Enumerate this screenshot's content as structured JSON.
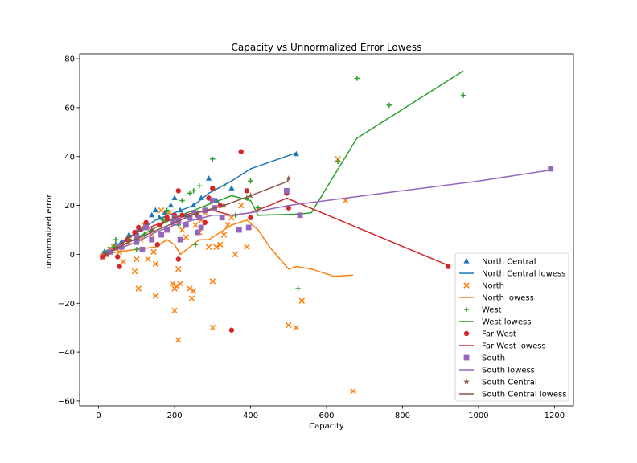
{
  "chart_data": {
    "type": "scatter",
    "title": "Capacity vs Unnormalized Error Lowess",
    "xlabel": "Capacity",
    "ylabel": "unnormaized error",
    "xlim": [
      -50,
      1250
    ],
    "ylim": [
      -62,
      82
    ],
    "xticks": [
      0,
      200,
      400,
      600,
      800,
      1000,
      1200
    ],
    "yticks": [
      -60,
      -40,
      -20,
      0,
      20,
      40,
      60,
      80
    ],
    "grid": false,
    "legend_position": "lower-right",
    "series": [
      {
        "name": "North Central",
        "kind": "scatter",
        "marker": "triangle",
        "color": "#1f77b4",
        "points": [
          [
            15,
            1
          ],
          [
            30,
            2
          ],
          [
            45,
            4
          ],
          [
            60,
            5
          ],
          [
            80,
            8
          ],
          [
            100,
            9
          ],
          [
            110,
            10
          ],
          [
            125,
            13
          ],
          [
            140,
            16
          ],
          [
            150,
            18
          ],
          [
            160,
            15
          ],
          [
            175,
            17
          ],
          [
            190,
            20
          ],
          [
            200,
            23
          ],
          [
            215,
            18
          ],
          [
            230,
            16
          ],
          [
            250,
            20
          ],
          [
            270,
            23
          ],
          [
            290,
            31
          ],
          [
            310,
            22
          ],
          [
            350,
            27
          ],
          [
            520,
            41
          ]
        ]
      },
      {
        "name": "North Central lowess",
        "kind": "line",
        "color": "#1f77b4",
        "points": [
          [
            15,
            1
          ],
          [
            50,
            4
          ],
          [
            100,
            9
          ],
          [
            150,
            14
          ],
          [
            200,
            17
          ],
          [
            250,
            20
          ],
          [
            290,
            25
          ],
          [
            350,
            30
          ],
          [
            400,
            35
          ],
          [
            520,
            41.5
          ]
        ]
      },
      {
        "name": "North",
        "kind": "scatter",
        "marker": "x",
        "color": "#ff7f0e",
        "points": [
          [
            10,
            -1
          ],
          [
            20,
            0
          ],
          [
            30,
            2
          ],
          [
            40,
            3
          ],
          [
            55,
            1
          ],
          [
            65,
            -3
          ],
          [
            80,
            5
          ],
          [
            95,
            -7
          ],
          [
            100,
            -2
          ],
          [
            105,
            -14
          ],
          [
            110,
            6
          ],
          [
            120,
            12
          ],
          [
            130,
            -2
          ],
          [
            140,
            8
          ],
          [
            145,
            1
          ],
          [
            150,
            -4
          ],
          [
            150,
            -17
          ],
          [
            160,
            12
          ],
          [
            165,
            18
          ],
          [
            180,
            10
          ],
          [
            185,
            17
          ],
          [
            195,
            -12
          ],
          [
            200,
            -14
          ],
          [
            200,
            -23
          ],
          [
            205,
            -13
          ],
          [
            210,
            -6
          ],
          [
            210,
            -35
          ],
          [
            215,
            -12
          ],
          [
            220,
            10
          ],
          [
            230,
            7
          ],
          [
            240,
            -14
          ],
          [
            245,
            -18
          ],
          [
            250,
            -15
          ],
          [
            255,
            12
          ],
          [
            265,
            9
          ],
          [
            270,
            14
          ],
          [
            280,
            17
          ],
          [
            290,
            3
          ],
          [
            300,
            -11
          ],
          [
            300,
            -30
          ],
          [
            310,
            3
          ],
          [
            320,
            4
          ],
          [
            330,
            8
          ],
          [
            340,
            12
          ],
          [
            350,
            15
          ],
          [
            360,
            0
          ],
          [
            375,
            20
          ],
          [
            390,
            3
          ],
          [
            500,
            -29
          ],
          [
            520,
            -30
          ],
          [
            535,
            -19
          ],
          [
            630,
            39
          ],
          [
            650,
            22
          ],
          [
            670,
            -56
          ]
        ]
      },
      {
        "name": "North lowess",
        "kind": "line",
        "color": "#ff7f0e",
        "points": [
          [
            10,
            0
          ],
          [
            50,
            1
          ],
          [
            100,
            2
          ],
          [
            150,
            3
          ],
          [
            180,
            6
          ],
          [
            200,
            4
          ],
          [
            215,
            0
          ],
          [
            240,
            3
          ],
          [
            265,
            6
          ],
          [
            290,
            6
          ],
          [
            320,
            9
          ],
          [
            350,
            12
          ],
          [
            390,
            14
          ],
          [
            420,
            10
          ],
          [
            450,
            3
          ],
          [
            500,
            -6
          ],
          [
            520,
            -5
          ],
          [
            560,
            -6
          ],
          [
            620,
            -9
          ],
          [
            670,
            -8.5
          ]
        ]
      },
      {
        "name": "West",
        "kind": "scatter",
        "marker": "plus",
        "color": "#2ca02c",
        "points": [
          [
            15,
            1
          ],
          [
            40,
            3
          ],
          [
            45,
            6
          ],
          [
            80,
            7
          ],
          [
            100,
            2
          ],
          [
            120,
            8
          ],
          [
            140,
            10
          ],
          [
            170,
            14
          ],
          [
            180,
            18
          ],
          [
            200,
            16
          ],
          [
            210,
            12
          ],
          [
            220,
            22
          ],
          [
            240,
            25
          ],
          [
            250,
            26
          ],
          [
            255,
            4
          ],
          [
            265,
            28
          ],
          [
            290,
            23
          ],
          [
            300,
            39
          ],
          [
            330,
            28
          ],
          [
            360,
            16
          ],
          [
            390,
            23
          ],
          [
            400,
            30
          ],
          [
            420,
            19
          ],
          [
            525,
            -14
          ],
          [
            630,
            38
          ],
          [
            680,
            72
          ],
          [
            765,
            61
          ],
          [
            960,
            65
          ]
        ]
      },
      {
        "name": "West lowess",
        "kind": "line",
        "color": "#2ca02c",
        "points": [
          [
            15,
            0.5
          ],
          [
            80,
            5
          ],
          [
            150,
            11
          ],
          [
            200,
            15
          ],
          [
            250,
            18
          ],
          [
            300,
            21
          ],
          [
            350,
            24
          ],
          [
            400,
            22
          ],
          [
            420,
            16
          ],
          [
            530,
            16.5
          ],
          [
            560,
            17
          ],
          [
            680,
            47.5
          ],
          [
            960,
            75
          ]
        ]
      },
      {
        "name": "Far West",
        "kind": "scatter",
        "marker": "circle",
        "color": "#d62728",
        "points": [
          [
            10,
            -1
          ],
          [
            20,
            0
          ],
          [
            50,
            -1
          ],
          [
            55,
            -5
          ],
          [
            75,
            6
          ],
          [
            95,
            9
          ],
          [
            105,
            11
          ],
          [
            125,
            13
          ],
          [
            155,
            4
          ],
          [
            160,
            12
          ],
          [
            180,
            15
          ],
          [
            200,
            16
          ],
          [
            210,
            -2
          ],
          [
            210,
            26
          ],
          [
            220,
            16
          ],
          [
            240,
            15
          ],
          [
            260,
            16
          ],
          [
            280,
            13
          ],
          [
            290,
            23
          ],
          [
            300,
            27
          ],
          [
            320,
            20
          ],
          [
            350,
            -31
          ],
          [
            375,
            42
          ],
          [
            390,
            26
          ],
          [
            400,
            15
          ],
          [
            495,
            25
          ],
          [
            500,
            19
          ],
          [
            920,
            -5
          ]
        ]
      },
      {
        "name": "Far West lowess",
        "kind": "line",
        "color": "#d62728",
        "points": [
          [
            10,
            -1
          ],
          [
            50,
            3
          ],
          [
            100,
            9
          ],
          [
            150,
            12
          ],
          [
            200,
            15
          ],
          [
            250,
            17
          ],
          [
            300,
            18
          ],
          [
            350,
            16
          ],
          [
            400,
            17
          ],
          [
            450,
            20
          ],
          [
            495,
            23
          ],
          [
            920,
            -4.5
          ]
        ]
      },
      {
        "name": "South",
        "kind": "scatter",
        "marker": "square",
        "color": "#9467bd",
        "points": [
          [
            30,
            1
          ],
          [
            60,
            3
          ],
          [
            100,
            5
          ],
          [
            100,
            7
          ],
          [
            115,
            2
          ],
          [
            125,
            11
          ],
          [
            140,
            6
          ],
          [
            165,
            8
          ],
          [
            180,
            10
          ],
          [
            195,
            13
          ],
          [
            200,
            15
          ],
          [
            210,
            14
          ],
          [
            215,
            6
          ],
          [
            230,
            12
          ],
          [
            240,
            15
          ],
          [
            250,
            17
          ],
          [
            260,
            9
          ],
          [
            265,
            15
          ],
          [
            270,
            11
          ],
          [
            280,
            18
          ],
          [
            300,
            22
          ],
          [
            305,
            19
          ],
          [
            325,
            15
          ],
          [
            370,
            10
          ],
          [
            395,
            11
          ],
          [
            495,
            26
          ],
          [
            530,
            16
          ],
          [
            1190,
            35
          ]
        ]
      },
      {
        "name": "South lowess",
        "kind": "line",
        "color": "#9467bd",
        "points": [
          [
            30,
            1
          ],
          [
            100,
            5
          ],
          [
            150,
            9
          ],
          [
            200,
            12
          ],
          [
            250,
            14
          ],
          [
            300,
            16
          ],
          [
            350,
            16
          ],
          [
            400,
            17
          ],
          [
            500,
            20
          ],
          [
            600,
            22
          ],
          [
            800,
            26
          ],
          [
            1000,
            30
          ],
          [
            1190,
            34.5
          ]
        ]
      },
      {
        "name": "South Central",
        "kind": "scatter",
        "marker": "star",
        "color": "#8c564b",
        "points": [
          [
            20,
            0
          ],
          [
            80,
            6
          ],
          [
            140,
            10
          ],
          [
            200,
            15
          ],
          [
            260,
            17
          ],
          [
            330,
            20
          ],
          [
            400,
            24
          ],
          [
            500,
            31
          ]
        ]
      },
      {
        "name": "South Central lowess",
        "kind": "line",
        "color": "#8c564b",
        "points": [
          [
            20,
            0
          ],
          [
            80,
            5
          ],
          [
            140,
            9
          ],
          [
            200,
            13
          ],
          [
            260,
            17
          ],
          [
            330,
            20
          ],
          [
            400,
            24
          ],
          [
            500,
            30
          ]
        ]
      }
    ]
  }
}
